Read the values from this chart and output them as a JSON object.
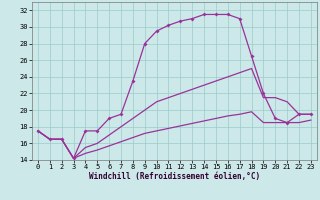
{
  "xlabel": "Windchill (Refroidissement éolien,°C)",
  "bg_color": "#cce8e8",
  "line_color": "#993399",
  "hours": [
    0,
    1,
    2,
    3,
    4,
    5,
    6,
    7,
    8,
    9,
    10,
    11,
    12,
    13,
    14,
    15,
    16,
    17,
    18,
    19,
    20,
    21,
    22,
    23
  ],
  "temp": [
    17.5,
    16.5,
    16.5,
    14.2,
    17.5,
    17.5,
    19.0,
    19.5,
    23.5,
    28.0,
    29.5,
    30.2,
    30.7,
    31.0,
    31.5,
    31.5,
    31.5,
    31.0,
    26.5,
    22.0,
    19.0,
    18.5,
    19.5,
    19.5
  ],
  "wc_upper": [
    17.5,
    16.5,
    16.5,
    14.2,
    15.5,
    16.0,
    17.0,
    18.0,
    19.0,
    20.0,
    21.0,
    21.5,
    22.0,
    22.5,
    23.0,
    23.5,
    24.0,
    24.5,
    25.0,
    21.5,
    21.5,
    21.0,
    19.5,
    19.5
  ],
  "wc_lower": [
    17.5,
    16.5,
    16.5,
    14.2,
    14.8,
    15.2,
    15.7,
    16.2,
    16.7,
    17.2,
    17.5,
    17.8,
    18.1,
    18.4,
    18.7,
    19.0,
    19.3,
    19.5,
    19.8,
    18.5,
    18.5,
    18.5,
    18.5,
    18.8
  ],
  "ylim": [
    14,
    33
  ],
  "xlim_min": -0.5,
  "xlim_max": 23.5,
  "yticks": [
    14,
    16,
    18,
    20,
    22,
    24,
    26,
    28,
    30,
    32
  ],
  "xticks": [
    0,
    1,
    2,
    3,
    4,
    5,
    6,
    7,
    8,
    9,
    10,
    11,
    12,
    13,
    14,
    15,
    16,
    17,
    18,
    19,
    20,
    21,
    22,
    23
  ],
  "xlabel_size": 5.5,
  "tick_labelsize": 5,
  "grid_color": "#99cccc",
  "spine_color": "#777777"
}
